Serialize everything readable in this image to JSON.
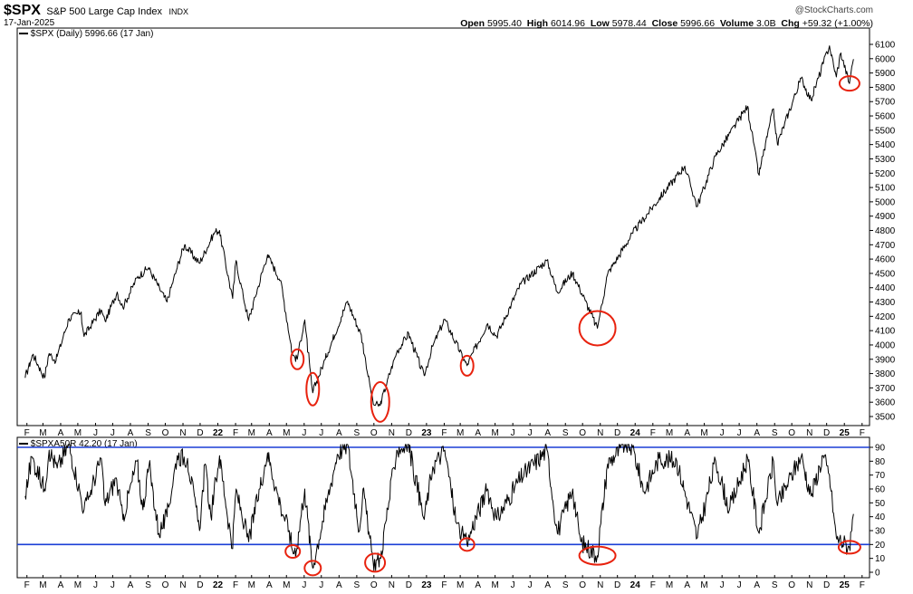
{
  "header": {
    "symbol": "$SPX",
    "name": "S&P 500 Large Cap Index",
    "exchange": "INDX",
    "date": "17-Jan-2025",
    "credit": "@StockCharts.com",
    "quote": {
      "open_label": "Open",
      "open": "5995.40",
      "high_label": "High",
      "high": "6014.96",
      "low_label": "Low",
      "low": "5978.44",
      "close_label": "Close",
      "close": "5996.66",
      "volume_label": "Volume",
      "volume": "3.0B",
      "chg_label": "Chg",
      "chg": "+59.32 (+1.00%)"
    }
  },
  "price_panel": {
    "legend": "$SPX (Daily) 5996.66 (17 Jan)"
  },
  "breadth_panel": {
    "legend": "$SPXA50R 42.20 (17 Jan)"
  },
  "colors": {
    "line": "#000000",
    "circle": "#e8220e",
    "threshold": "#1b3fd6",
    "frame": "#000000"
  },
  "chart_data": [
    {
      "type": "line",
      "series": [
        {
          "name": "$SPX",
          "points": [
            [
              "2021-01-29",
              3770
            ],
            [
              "2021-02-12",
              3935
            ],
            [
              "2021-03-04",
              3770
            ],
            [
              "2021-03-12",
              3940
            ],
            [
              "2021-03-24",
              3890
            ],
            [
              "2021-04-16",
              4185
            ],
            [
              "2021-05-07",
              4230
            ],
            [
              "2021-05-12",
              4060
            ],
            [
              "2021-06-11",
              4245
            ],
            [
              "2021-06-18",
              4165
            ],
            [
              "2021-07-09",
              4370
            ],
            [
              "2021-07-19",
              4260
            ],
            [
              "2021-08-13",
              4470
            ],
            [
              "2021-09-02",
              4540
            ],
            [
              "2021-10-04",
              4300
            ],
            [
              "2021-10-22",
              4540
            ],
            [
              "2021-11-04",
              4700
            ],
            [
              "2021-11-30",
              4570
            ],
            [
              "2021-12-27",
              4790
            ],
            [
              "2022-01-04",
              4800
            ],
            [
              "2022-01-27",
              4325
            ],
            [
              "2022-02-02",
              4590
            ],
            [
              "2022-02-24",
              4170
            ],
            [
              "2022-03-29",
              4630
            ],
            [
              "2022-04-21",
              4450
            ],
            [
              "2022-05-12",
              3930
            ],
            [
              "2022-05-20",
              3900
            ],
            [
              "2022-06-02",
              4175
            ],
            [
              "2022-06-16",
              3666
            ],
            [
              "2022-07-08",
              3900
            ],
            [
              "2022-08-16",
              4305
            ],
            [
              "2022-09-09",
              4070
            ],
            [
              "2022-09-30",
              3585
            ],
            [
              "2022-10-12",
              3577
            ],
            [
              "2022-11-10",
              3950
            ],
            [
              "2022-12-01",
              4080
            ],
            [
              "2022-12-28",
              3785
            ],
            [
              "2023-01-12",
              3990
            ],
            [
              "2023-02-02",
              4180
            ],
            [
              "2023-03-13",
              3855
            ],
            [
              "2023-04-18",
              4150
            ],
            [
              "2023-05-04",
              4060
            ],
            [
              "2023-06-15",
              4425
            ],
            [
              "2023-07-31",
              4590
            ],
            [
              "2023-08-18",
              4370
            ],
            [
              "2023-09-14",
              4505
            ],
            [
              "2023-10-06",
              4308
            ],
            [
              "2023-10-27",
              4117
            ],
            [
              "2023-11-14",
              4495
            ],
            [
              "2023-12-28",
              4780
            ],
            [
              "2024-02-12",
              5020
            ],
            [
              "2024-03-28",
              5250
            ],
            [
              "2024-04-19",
              4967
            ],
            [
              "2024-05-21",
              5320
            ],
            [
              "2024-07-16",
              5667
            ],
            [
              "2024-08-05",
              5186
            ],
            [
              "2024-08-30",
              5650
            ],
            [
              "2024-09-06",
              5400
            ],
            [
              "2024-10-18",
              5865
            ],
            [
              "2024-11-04",
              5710
            ],
            [
              "2024-12-06",
              6090
            ],
            [
              "2024-12-18",
              5872
            ],
            [
              "2024-12-26",
              6040
            ],
            [
              "2025-01-10",
              5827
            ],
            [
              "2025-01-17",
              5997
            ]
          ]
        }
      ],
      "ylim": [
        3450,
        6120
      ],
      "yticks": [
        3500,
        3600,
        3700,
        3800,
        3900,
        4000,
        4100,
        4200,
        4300,
        4400,
        4500,
        4600,
        4700,
        4800,
        4900,
        5000,
        5100,
        5200,
        5300,
        5400,
        5500,
        5600,
        5700,
        5800,
        5900,
        6000,
        6100
      ],
      "grid": false,
      "annotations": [
        "2022-05-20",
        "2022-06-16",
        "2022-10-12",
        "2023-03-13",
        "2023-10-27",
        "2025-01-10"
      ]
    },
    {
      "type": "line",
      "series": [
        {
          "name": "$SPXA50R",
          "points": [
            [
              "2021-01-29",
              55
            ],
            [
              "2021-02-10",
              83
            ],
            [
              "2021-03-04",
              60
            ],
            [
              "2021-03-12",
              88
            ],
            [
              "2021-03-26",
              75
            ],
            [
              "2021-04-16",
              92
            ],
            [
              "2021-05-12",
              45
            ],
            [
              "2021-05-21",
              55
            ],
            [
              "2021-06-11",
              82
            ],
            [
              "2021-06-18",
              48
            ],
            [
              "2021-07-07",
              68
            ],
            [
              "2021-07-19",
              38
            ],
            [
              "2021-08-13",
              80
            ],
            [
              "2021-08-23",
              45
            ],
            [
              "2021-09-03",
              78
            ],
            [
              "2021-09-20",
              28
            ],
            [
              "2021-10-04",
              40
            ],
            [
              "2021-10-22",
              84
            ],
            [
              "2021-11-09",
              82
            ],
            [
              "2021-11-30",
              30
            ],
            [
              "2021-12-10",
              78
            ],
            [
              "2021-12-20",
              40
            ],
            [
              "2022-01-04",
              84
            ],
            [
              "2022-01-27",
              17
            ],
            [
              "2022-02-02",
              60
            ],
            [
              "2022-02-24",
              22
            ],
            [
              "2022-03-29",
              86
            ],
            [
              "2022-04-21",
              48
            ],
            [
              "2022-05-06",
              30
            ],
            [
              "2022-05-12",
              15
            ],
            [
              "2022-05-20",
              18
            ],
            [
              "2022-06-02",
              60
            ],
            [
              "2022-06-16",
              3
            ],
            [
              "2022-07-08",
              45
            ],
            [
              "2022-07-29",
              85
            ],
            [
              "2022-08-16",
              92
            ],
            [
              "2022-09-06",
              30
            ],
            [
              "2022-09-12",
              60
            ],
            [
              "2022-09-30",
              6
            ],
            [
              "2022-10-13",
              10
            ],
            [
              "2022-11-10",
              88
            ],
            [
              "2022-12-01",
              92
            ],
            [
              "2022-12-28",
              38
            ],
            [
              "2023-01-12",
              76
            ],
            [
              "2023-02-02",
              88
            ],
            [
              "2023-02-23",
              35
            ],
            [
              "2023-03-13",
              20
            ],
            [
              "2023-03-22",
              32
            ],
            [
              "2023-04-18",
              60
            ],
            [
              "2023-05-04",
              38
            ],
            [
              "2023-06-15",
              68
            ],
            [
              "2023-07-31",
              88
            ],
            [
              "2023-08-18",
              28
            ],
            [
              "2023-09-14",
              60
            ],
            [
              "2023-09-28",
              22
            ],
            [
              "2023-10-27",
              12
            ],
            [
              "2023-11-14",
              78
            ],
            [
              "2023-12-14",
              92
            ],
            [
              "2023-12-28",
              90
            ],
            [
              "2024-01-17",
              58
            ],
            [
              "2024-02-12",
              82
            ],
            [
              "2024-03-14",
              80
            ],
            [
              "2024-04-19",
              25
            ],
            [
              "2024-05-21",
              80
            ],
            [
              "2024-06-14",
              45
            ],
            [
              "2024-07-16",
              82
            ],
            [
              "2024-08-05",
              28
            ],
            [
              "2024-08-30",
              80
            ],
            [
              "2024-09-06",
              48
            ],
            [
              "2024-10-18",
              84
            ],
            [
              "2024-11-04",
              55
            ],
            [
              "2024-11-25",
              84
            ],
            [
              "2024-12-06",
              70
            ],
            [
              "2024-12-18",
              25
            ],
            [
              "2025-01-10",
              18
            ],
            [
              "2025-01-14",
              30
            ],
            [
              "2025-01-17",
              42
            ]
          ]
        }
      ],
      "ylim": [
        0,
        92
      ],
      "yticks": [
        0,
        10,
        20,
        30,
        40,
        50,
        60,
        70,
        80,
        90
      ],
      "hlines": [
        20,
        90
      ],
      "grid": false,
      "annotations": [
        "2022-05-12",
        "2022-06-16",
        "2022-10-03",
        "2023-03-13",
        "2023-10-27",
        "2025-01-10"
      ]
    }
  ],
  "xaxis": {
    "start": "2021-01-15",
    "end": "2025-02-14",
    "ticks": [
      [
        "2021-02-01",
        "F"
      ],
      [
        "2021-03-01",
        "M"
      ],
      [
        "2021-04-01",
        "A"
      ],
      [
        "2021-05-01",
        "M"
      ],
      [
        "2021-06-01",
        "J"
      ],
      [
        "2021-07-01",
        "J"
      ],
      [
        "2021-08-01",
        "A"
      ],
      [
        "2021-09-01",
        "S"
      ],
      [
        "2021-10-01",
        "O"
      ],
      [
        "2021-11-01",
        "N"
      ],
      [
        "2021-12-01",
        "D"
      ],
      [
        "2022-01-01",
        "22"
      ],
      [
        "2022-02-01",
        "F"
      ],
      [
        "2022-03-01",
        "M"
      ],
      [
        "2022-04-01",
        "A"
      ],
      [
        "2022-05-01",
        "M"
      ],
      [
        "2022-06-01",
        "J"
      ],
      [
        "2022-07-01",
        "J"
      ],
      [
        "2022-08-01",
        "A"
      ],
      [
        "2022-09-01",
        "S"
      ],
      [
        "2022-10-01",
        "O"
      ],
      [
        "2022-11-01",
        "N"
      ],
      [
        "2022-12-01",
        "D"
      ],
      [
        "2023-01-01",
        "23"
      ],
      [
        "2023-02-01",
        "F"
      ],
      [
        "2023-03-01",
        "M"
      ],
      [
        "2023-04-01",
        "A"
      ],
      [
        "2023-05-01",
        "M"
      ],
      [
        "2023-06-01",
        "J"
      ],
      [
        "2023-07-01",
        "J"
      ],
      [
        "2023-08-01",
        "A"
      ],
      [
        "2023-09-01",
        "S"
      ],
      [
        "2023-10-01",
        "O"
      ],
      [
        "2023-11-01",
        "N"
      ],
      [
        "2023-12-01",
        "D"
      ],
      [
        "2024-01-01",
        "24"
      ],
      [
        "2024-02-01",
        "F"
      ],
      [
        "2024-03-01",
        "M"
      ],
      [
        "2024-04-01",
        "A"
      ],
      [
        "2024-05-01",
        "M"
      ],
      [
        "2024-06-01",
        "J"
      ],
      [
        "2024-07-01",
        "J"
      ],
      [
        "2024-08-01",
        "A"
      ],
      [
        "2024-09-01",
        "S"
      ],
      [
        "2024-10-01",
        "O"
      ],
      [
        "2024-11-01",
        "N"
      ],
      [
        "2024-12-01",
        "D"
      ],
      [
        "2025-01-01",
        "25"
      ],
      [
        "2025-02-01",
        "F"
      ]
    ]
  }
}
